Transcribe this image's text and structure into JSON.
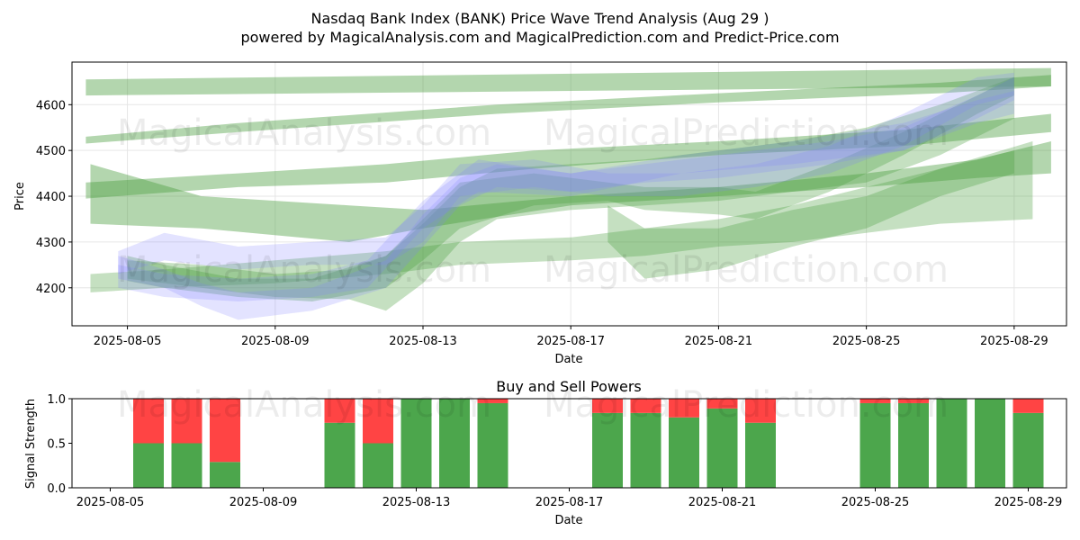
{
  "figure": {
    "title_line1": "Nasdaq Bank Index (BANK) Price Wave Trend Analysis (Aug 29 )",
    "title_line2": "powered by MagicalAnalysis.com and MagicalPrediction.com and Predict-Price.com",
    "watermark_left": "MagicalAnalysis.com",
    "watermark_right": "MagicalPrediction.com"
  },
  "chart_data": [
    {
      "type": "area",
      "title": "",
      "xlabel": "Date",
      "ylabel": "Price",
      "xlim": [
        "2025-08-03T12:00",
        "2025-08-30T10:00"
      ],
      "ylim": [
        4117,
        4693
      ],
      "xticks": [
        "2025-08-05",
        "2025-08-09",
        "2025-08-13",
        "2025-08-17",
        "2025-08-21",
        "2025-08-25",
        "2025-08-29"
      ],
      "yticks": [
        4200,
        4300,
        4400,
        4500,
        4600
      ],
      "grid": true,
      "colors": {
        "green_band": "#4a9e3f",
        "blue_band": "#8080ff",
        "grid": "#e6e6e6"
      },
      "green_bands": [
        {
          "x": [
            "2025-08-03T21:00",
            "2025-08-30T00:00"
          ],
          "low": [
            4620,
            4640
          ],
          "high": [
            4655,
            4680
          ]
        },
        {
          "x": [
            "2025-08-03T21:00",
            "2025-08-08T00:00",
            "2025-08-15T00:00",
            "2025-08-21T00:00",
            "2025-08-27T00:00",
            "2025-08-30T00:00"
          ],
          "low": [
            4515,
            4540,
            4580,
            4605,
            4625,
            4640
          ],
          "high": [
            4530,
            4560,
            4600,
            4625,
            4648,
            4665
          ]
        },
        {
          "x": [
            "2025-08-03T21:00",
            "2025-08-08T00:00",
            "2025-08-12T00:00",
            "2025-08-16T00:00",
            "2025-08-21T00:00",
            "2025-08-26T00:00",
            "2025-08-30T00:00"
          ],
          "low": [
            4395,
            4420,
            4430,
            4460,
            4490,
            4510,
            4540
          ],
          "high": [
            4430,
            4450,
            4470,
            4500,
            4520,
            4545,
            4580
          ]
        },
        {
          "x": [
            "2025-08-04T00:00",
            "2025-08-07T00:00",
            "2025-08-11T00:00",
            "2025-08-13T00:00",
            "2025-08-17T00:00",
            "2025-08-21T00:00",
            "2025-08-25T00:00",
            "2025-08-28T00:00",
            "2025-08-30T00:00"
          ],
          "low": [
            4340,
            4330,
            4300,
            4330,
            4380,
            4400,
            4420,
            4440,
            4450
          ],
          "high": [
            4470,
            4400,
            4380,
            4370,
            4400,
            4420,
            4450,
            4480,
            4520
          ]
        },
        {
          "x": [
            "2025-08-04T00:00",
            "2025-08-06T00:00",
            "2025-08-09T00:00",
            "2025-08-12T00:00",
            "2025-08-14T00:00",
            "2025-08-17T00:00",
            "2025-08-19T00:00",
            "2025-08-21T00:00",
            "2025-08-23T00:00",
            "2025-08-25T00:00",
            "2025-08-27T00:00",
            "2025-08-29T12:00"
          ],
          "low": [
            4190,
            4200,
            4210,
            4230,
            4250,
            4260,
            4270,
            4290,
            4300,
            4320,
            4340,
            4350
          ],
          "high": [
            4230,
            4240,
            4260,
            4280,
            4300,
            4310,
            4330,
            4350,
            4380,
            4420,
            4460,
            4520
          ]
        },
        {
          "x": [
            "2025-08-05T00:00",
            "2025-08-07T00:00",
            "2025-08-09T00:00",
            "2025-08-11T00:00",
            "2025-08-12T00:00",
            "2025-08-13T00:00",
            "2025-08-14T00:00",
            "2025-08-15T00:00",
            "2025-08-17T00:00",
            "2025-08-19T00:00",
            "2025-08-21T00:00",
            "2025-08-23T00:00",
            "2025-08-25T00:00",
            "2025-08-27T00:00",
            "2025-08-29T00:00"
          ],
          "low": [
            4220,
            4200,
            4180,
            4175,
            4150,
            4210,
            4300,
            4350,
            4370,
            4380,
            4390,
            4410,
            4430,
            4490,
            4570
          ],
          "high": [
            4260,
            4250,
            4230,
            4240,
            4270,
            4340,
            4420,
            4460,
            4470,
            4480,
            4500,
            4520,
            4550,
            4600,
            4660
          ]
        },
        {
          "x": [
            "2025-08-05T00:00",
            "2025-08-06T00:00",
            "2025-08-08T00:00",
            "2025-08-10T00:00",
            "2025-08-12T00:00",
            "2025-08-13T00:00",
            "2025-08-14T00:00",
            "2025-08-16T00:00",
            "2025-08-18T00:00",
            "2025-08-19T00:00",
            "2025-08-21T00:00",
            "2025-08-22T00:00",
            "2025-08-24T00:00",
            "2025-08-26T00:00",
            "2025-08-28T00:00",
            "2025-08-29T00:00"
          ],
          "low": [
            4215,
            4200,
            4180,
            4170,
            4200,
            4260,
            4330,
            4380,
            4390,
            4370,
            4360,
            4350,
            4410,
            4490,
            4580,
            4620
          ],
          "high": [
            4270,
            4250,
            4220,
            4220,
            4270,
            4350,
            4430,
            4450,
            4430,
            4420,
            4420,
            4410,
            4470,
            4540,
            4620,
            4660
          ]
        },
        {
          "x": [
            "2025-08-18T00:00",
            "2025-08-19T00:00",
            "2025-08-21T00:00",
            "2025-08-23T00:00",
            "2025-08-25T00:00",
            "2025-08-27T00:00",
            "2025-08-29T00:00"
          ],
          "low": [
            4300,
            4220,
            4240,
            4290,
            4330,
            4400,
            4450
          ],
          "high": [
            4380,
            4330,
            4330,
            4370,
            4400,
            4460,
            4500
          ]
        }
      ],
      "blue_bands": [
        {
          "x": [
            "2025-08-04T18:00",
            "2025-08-06T00:00",
            "2025-08-07T00:00",
            "2025-08-08T00:00",
            "2025-08-10T00:00",
            "2025-08-12T00:00",
            "2025-08-13T00:00",
            "2025-08-14T00:00",
            "2025-08-15T00:00",
            "2025-08-17T00:00",
            "2025-08-19T00:00",
            "2025-08-21T00:00",
            "2025-08-22T00:00",
            "2025-08-24T00:00",
            "2025-08-26T00:00",
            "2025-08-28T00:00",
            "2025-08-29T00:00"
          ],
          "low": [
            4220,
            4200,
            4160,
            4130,
            4150,
            4200,
            4290,
            4380,
            4420,
            4410,
            4430,
            4440,
            4450,
            4470,
            4500,
            4570,
            4610
          ],
          "high": [
            4270,
            4240,
            4210,
            4190,
            4200,
            4260,
            4360,
            4440,
            4470,
            4450,
            4470,
            4490,
            4500,
            4520,
            4550,
            4620,
            4660
          ]
        },
        {
          "x": [
            "2025-08-04T18:00",
            "2025-08-06T00:00",
            "2025-08-08T00:00",
            "2025-08-10T00:00",
            "2025-08-12T00:00",
            "2025-08-13T00:00",
            "2025-08-14T00:00",
            "2025-08-16T00:00",
            "2025-08-18T00:00",
            "2025-08-20T00:00",
            "2025-08-22T00:00",
            "2025-08-24T00:00",
            "2025-08-26T00:00",
            "2025-08-28T00:00",
            "2025-08-29T00:00"
          ],
          "low": [
            4230,
            4260,
            4240,
            4250,
            4250,
            4300,
            4400,
            4420,
            4400,
            4400,
            4420,
            4450,
            4510,
            4600,
            4620
          ],
          "high": [
            4280,
            4320,
            4290,
            4300,
            4310,
            4380,
            4470,
            4480,
            4450,
            4450,
            4470,
            4510,
            4580,
            4660,
            4670
          ]
        },
        {
          "x": [
            "2025-08-04T18:00",
            "2025-08-06T00:00",
            "2025-08-08T00:00",
            "2025-08-10T00:00",
            "2025-08-11T12:00",
            "2025-08-13T00:00",
            "2025-08-14T12:00",
            "2025-08-17T00:00",
            "2025-08-20T00:00",
            "2025-08-23T00:00",
            "2025-08-26T00:00",
            "2025-08-28T00:00",
            "2025-08-29T00:00"
          ],
          "low": [
            4200,
            4180,
            4170,
            4180,
            4200,
            4330,
            4410,
            4400,
            4450,
            4470,
            4500,
            4560,
            4580
          ],
          "high": [
            4250,
            4230,
            4220,
            4230,
            4260,
            4390,
            4480,
            4450,
            4490,
            4520,
            4560,
            4610,
            4630
          ]
        }
      ]
    },
    {
      "type": "bar",
      "title": "Buy and Sell Powers",
      "xlabel": "Date",
      "ylabel": "Signal Strength",
      "xlim": [
        "2025-08-04T00:00",
        "2025-08-30T00:00"
      ],
      "ylim": [
        0,
        1
      ],
      "xticks": [
        "2025-08-05",
        "2025-08-09",
        "2025-08-13",
        "2025-08-17",
        "2025-08-21",
        "2025-08-25",
        "2025-08-29"
      ],
      "yticks": [
        0.0,
        0.5,
        1.0
      ],
      "colors": {
        "buy": "#4ca64c",
        "sell": "#ff4444"
      },
      "categories": [
        "2025-08-06",
        "2025-08-07",
        "2025-08-08",
        "2025-08-11",
        "2025-08-12",
        "2025-08-13",
        "2025-08-14",
        "2025-08-15",
        "2025-08-18",
        "2025-08-19",
        "2025-08-20",
        "2025-08-21",
        "2025-08-22",
        "2025-08-25",
        "2025-08-26",
        "2025-08-27",
        "2025-08-28",
        "2025-08-29"
      ],
      "series": [
        {
          "values": [
            0.5,
            0.5,
            0.29,
            0.73,
            0.5,
            1.0,
            1.0,
            0.95,
            0.84,
            0.84,
            0.79,
            0.89,
            0.73,
            0.95,
            0.95,
            1.0,
            1.0,
            0.84
          ]
        },
        {
          "values": [
            0.5,
            0.5,
            0.71,
            0.27,
            0.5,
            0.0,
            0.0,
            0.05,
            0.16,
            0.16,
            0.21,
            0.11,
            0.27,
            0.05,
            0.05,
            0.0,
            0.0,
            0.16
          ]
        }
      ]
    }
  ]
}
